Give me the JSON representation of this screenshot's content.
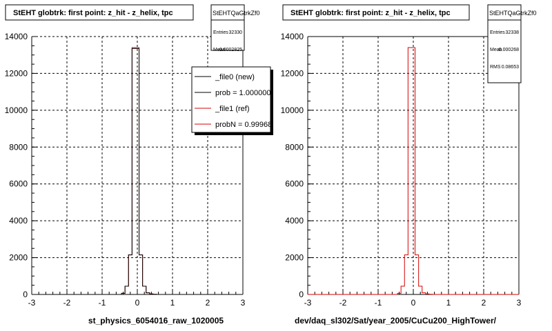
{
  "chart_data": [
    {
      "type": "histogram",
      "title": "StEHT globtrk: first point: z_hit - z_helix, tpc",
      "xlabel": "st_physics_6054016_raw_1020005",
      "ylabel": "",
      "xlim": [
        -3,
        3
      ],
      "ylim": [
        0,
        14000
      ],
      "x_ticks": [
        "-3",
        "-2",
        "-1",
        "0",
        "1",
        "2",
        "3"
      ],
      "y_ticks": [
        "0",
        "2000",
        "4000",
        "6000",
        "8000",
        "10000",
        "12000",
        "14000"
      ],
      "grid": true,
      "stats": {
        "name": "StEHTQaGtrkZf0",
        "rows": [
          {
            "label": "Entries",
            "value": "32330"
          },
          {
            "label": "Mean",
            "value": "-0.0002825"
          }
        ]
      },
      "legend": {
        "placement": "right",
        "entries": [
          {
            "label": "_file0 (new)",
            "color": "#000000"
          },
          {
            "label": "prob = 1.000000",
            "color": "#000000"
          },
          {
            "label": "_file1 (ref)",
            "color": "#d40000"
          },
          {
            "label": "probN = 0.99968",
            "color": "#d40000"
          }
        ]
      },
      "bin_edges": [
        -3.0,
        -0.45,
        -0.35,
        -0.25,
        -0.15,
        -0.05,
        0.05,
        0.15,
        0.25,
        0.35,
        0.45,
        0.55,
        3.0
      ],
      "series": [
        {
          "color": "#d40000",
          "values": [
            0,
            60,
            450,
            2150,
            13400,
            13400,
            2150,
            450,
            90,
            30,
            10,
            0
          ]
        },
        {
          "color": "#000000",
          "values": [
            0,
            60,
            450,
            2150,
            13350,
            13350,
            2150,
            450,
            90,
            30,
            10,
            0
          ]
        }
      ]
    },
    {
      "type": "histogram",
      "title": "StEHT globtrk: first point: z_hit - z_helix, tpc",
      "xlabel": "dev/daq_sl302/Sat/year_2005/CuCu200_HighTower/",
      "ylabel": "",
      "xlim": [
        -3,
        3
      ],
      "ylim": [
        0,
        14000
      ],
      "x_ticks": [
        "-3",
        "-2",
        "-1",
        "0",
        "1",
        "2",
        "3"
      ],
      "y_ticks": [
        "0",
        "2000",
        "4000",
        "6000",
        "8000",
        "10000",
        "12000",
        "14000"
      ],
      "grid": true,
      "stats": {
        "name": "StEHTQaGtrkZf0",
        "rows": [
          {
            "label": "Entries",
            "value": "32338"
          },
          {
            "label": "Mean",
            "value": "-0.000268"
          },
          {
            "label": "RMS",
            "value": "0.08653"
          }
        ]
      },
      "bin_edges": [
        -3.0,
        -0.45,
        -0.35,
        -0.25,
        -0.15,
        -0.05,
        0.05,
        0.15,
        0.25,
        0.35,
        0.45,
        0.55,
        3.0
      ],
      "series": [
        {
          "color": "#d40000",
          "values": [
            0,
            60,
            450,
            2150,
            13400,
            13400,
            2150,
            450,
            90,
            30,
            10,
            0
          ]
        }
      ]
    }
  ]
}
